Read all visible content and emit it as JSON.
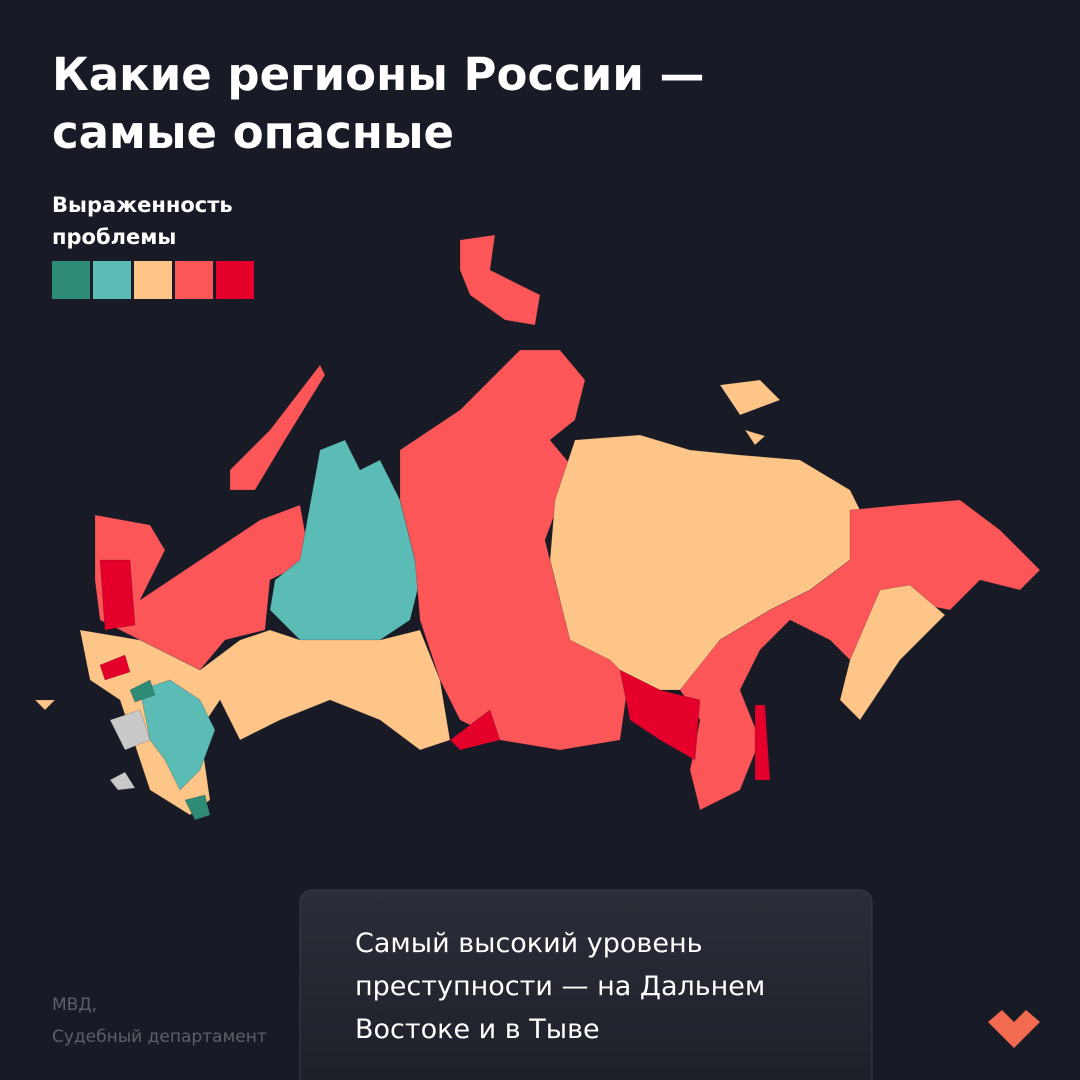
{
  "header": {
    "title": [
      "Какие регионы России —",
      "самые опасные"
    ]
  },
  "legend": {
    "label": [
      "Выраженность",
      "проблемы"
    ],
    "colors": [
      "#2e8b76",
      "#5bbcb6",
      "#fec588",
      "#fd5659",
      "#e4002b"
    ]
  },
  "callout": {
    "lines": [
      "Самый высокий уровень",
      "преступности — на Дальнем",
      "Востоке и в Тыве"
    ]
  },
  "source": [
    "МВД,",
    "Судебный департамент"
  ]
}
